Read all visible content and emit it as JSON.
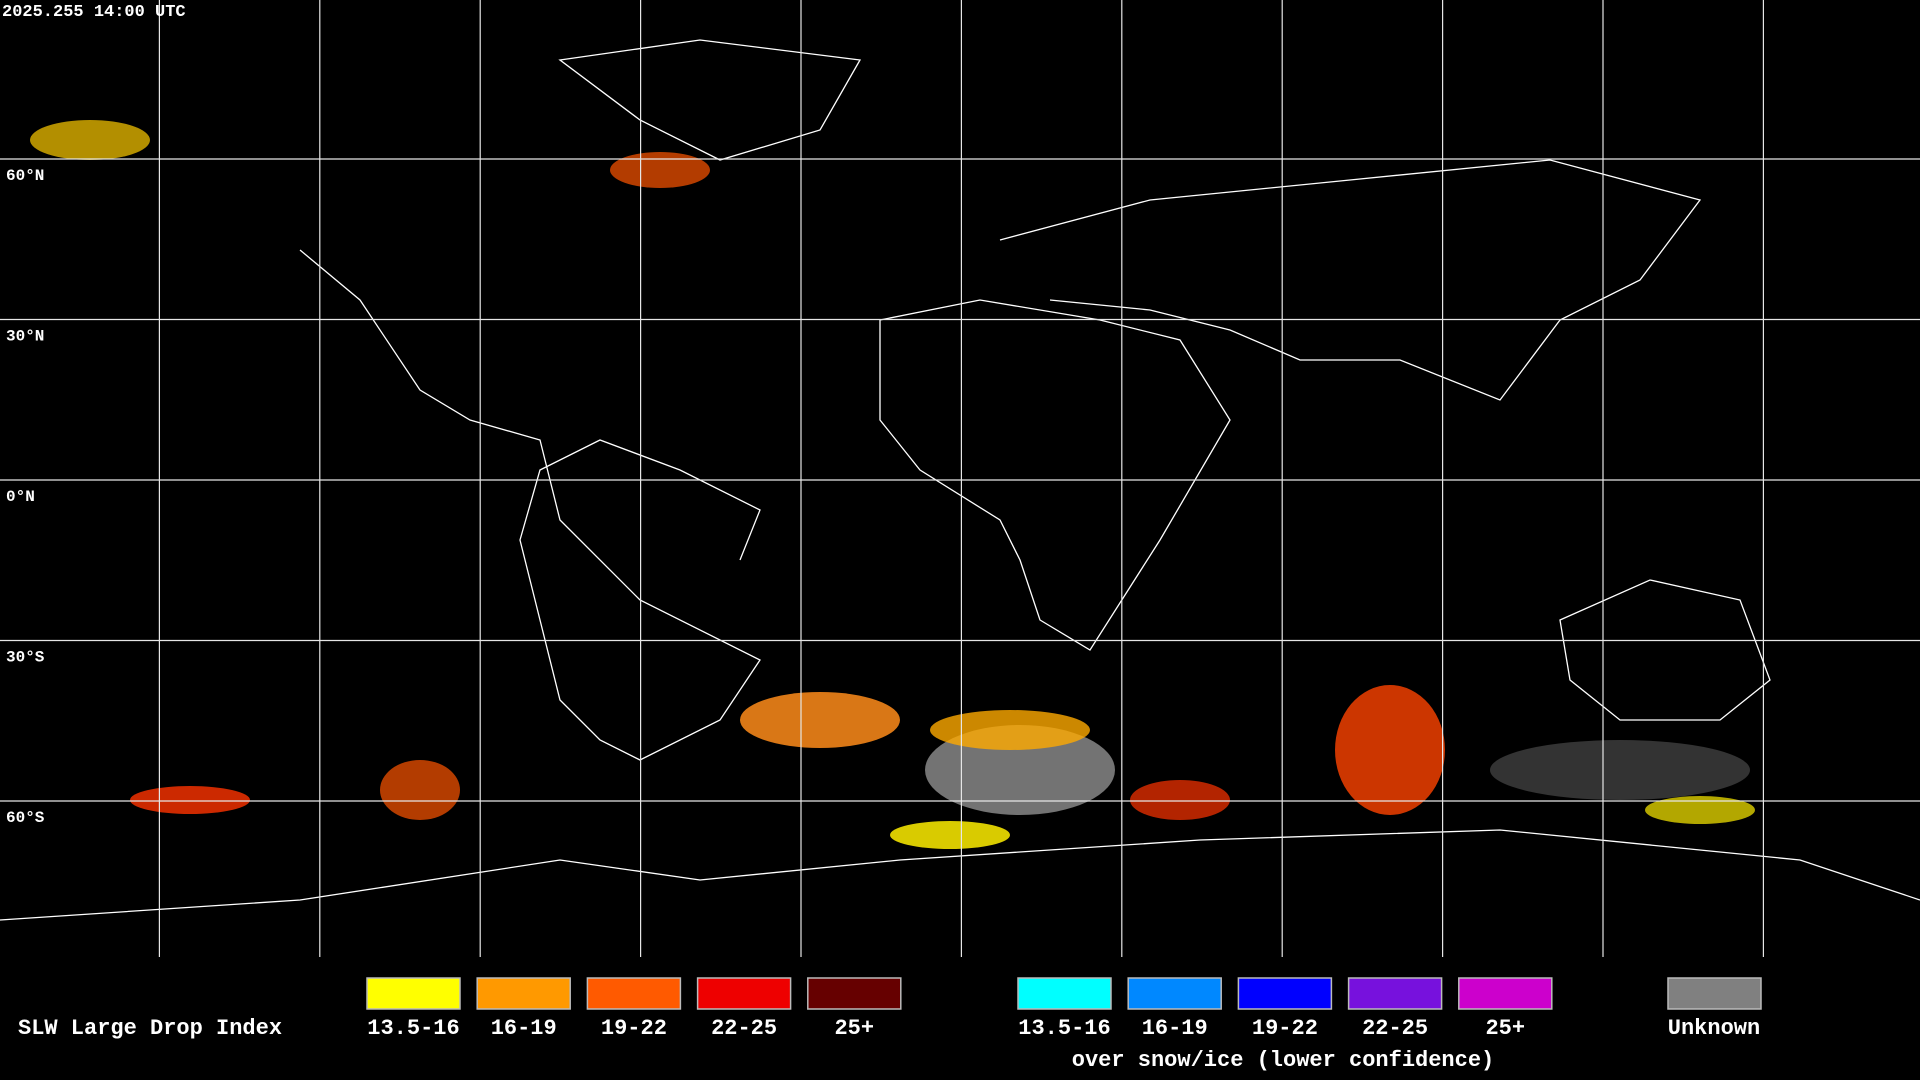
{
  "header": {
    "timestamp": "2025.255 14:00 UTC"
  },
  "map": {
    "lat_labels": [
      "60°N",
      "30°N",
      "0°N",
      "30°S",
      "60°S"
    ]
  },
  "legend": {
    "title": "SLW Large Drop Index",
    "groups": [
      {
        "items": [
          {
            "label": "13.5-16",
            "color": "#ffff00"
          },
          {
            "label": "16-19",
            "color": "#ff9900"
          },
          {
            "label": "19-22",
            "color": "#ff5a00"
          },
          {
            "label": "22-25",
            "color": "#ee0000"
          },
          {
            "label": "25+",
            "color": "#660000"
          }
        ]
      },
      {
        "items": [
          {
            "label": "13.5-16",
            "color": "#00ffff"
          },
          {
            "label": "16-19",
            "color": "#0088ff"
          },
          {
            "label": "19-22",
            "color": "#0000ff"
          },
          {
            "label": "22-25",
            "color": "#7711dd"
          },
          {
            "label": "25+",
            "color": "#cc00cc"
          }
        ],
        "note": "over snow/ice (lower confidence)"
      }
    ],
    "unknown": {
      "label": "Unknown",
      "color": "#808080"
    }
  }
}
